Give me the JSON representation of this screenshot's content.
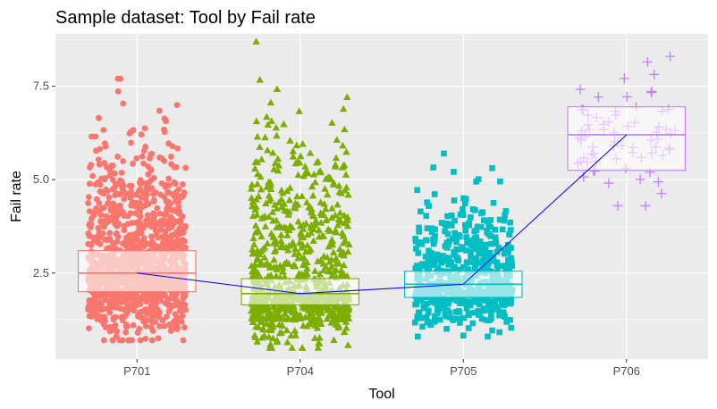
{
  "chart_data": {
    "type": "box",
    "title": "Sample dataset: Tool by Fail rate",
    "xlabel": "Tool",
    "ylabel": "Fail rate",
    "categories": [
      "P701",
      "P704",
      "P705",
      "P706"
    ],
    "ylim": [
      0.2,
      8.9
    ],
    "yticks": [
      2.5,
      5.0,
      7.5
    ],
    "ytick_labels": [
      "2.5",
      "5.0",
      "7.5"
    ],
    "grid": true,
    "legend": "none",
    "colors": [
      "#f8766d",
      "#7cae00",
      "#00bfc4",
      "#c77cff"
    ],
    "mean_line_color": "#0000ff",
    "point_shapes": [
      "circle",
      "triangle",
      "square",
      "plus"
    ],
    "boxes": [
      {
        "category": "P701",
        "q1": 2.0,
        "median": 2.5,
        "q3": 3.1
      },
      {
        "category": "P704",
        "q1": 1.65,
        "median": 1.95,
        "q3": 2.35
      },
      {
        "category": "P705",
        "q1": 1.85,
        "median": 2.2,
        "q3": 2.55
      },
      {
        "category": "P706",
        "q1": 5.25,
        "median": 6.2,
        "q3": 6.95
      }
    ],
    "mean_line": [
      2.5,
      1.95,
      2.2,
      6.2
    ],
    "point_ranges": [
      {
        "category": "P701",
        "min": 0.7,
        "max": 7.7,
        "count": 1200
      },
      {
        "category": "P704",
        "min": 0.5,
        "max": 8.7,
        "count": 800
      },
      {
        "category": "P705",
        "min": 0.8,
        "max": 5.7,
        "count": 600
      },
      {
        "category": "P706",
        "min": 4.3,
        "max": 8.3,
        "count": 70
      }
    ]
  }
}
